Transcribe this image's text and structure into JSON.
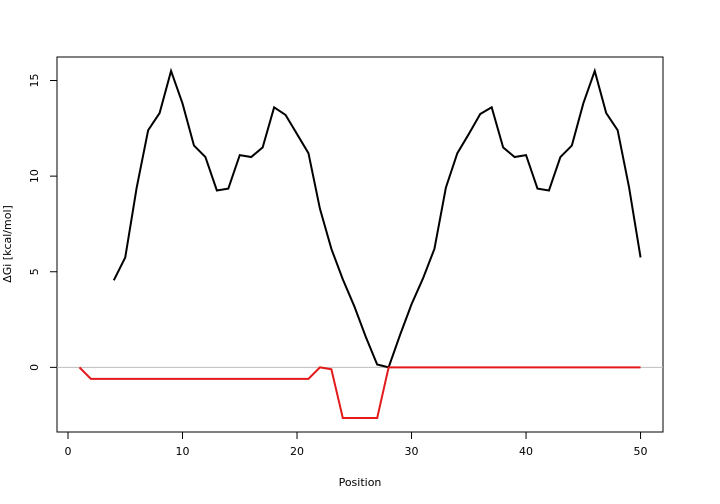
{
  "chart_data": {
    "type": "line",
    "x_label": "Position",
    "y_label": "ΔGi [kcal/mol]",
    "x": [
      1,
      2,
      3,
      4,
      5,
      6,
      7,
      8,
      9,
      10,
      11,
      12,
      13,
      14,
      15,
      16,
      17,
      18,
      19,
      20,
      21,
      22,
      23,
      24,
      25,
      26,
      27,
      28,
      29,
      30,
      31,
      32,
      33,
      34,
      35,
      36,
      37,
      38,
      39,
      40,
      41,
      42,
      43,
      44,
      45,
      46,
      47,
      48,
      49,
      50
    ],
    "series": [
      {
        "color": "#000000",
        "values": [
          null,
          null,
          null,
          4.55,
          5.75,
          9.4,
          12.4,
          13.3,
          15.5,
          13.8,
          11.6,
          11.0,
          9.25,
          9.35,
          11.1,
          11.0,
          11.5,
          13.6,
          13.2,
          12.2,
          11.2,
          8.3,
          6.2,
          4.6,
          3.2,
          1.6,
          0.15,
          0.0,
          1.7,
          3.3,
          4.65,
          6.2,
          9.4,
          11.2,
          12.2,
          13.25,
          13.6,
          11.5,
          11.0,
          11.1,
          9.35,
          9.25,
          11.0,
          11.6,
          13.8,
          15.5,
          13.3,
          12.4,
          9.4,
          5.75
        ]
      },
      {
        "color": "#e31a1c",
        "values": [
          0,
          -0.6,
          -0.6,
          -0.6,
          -0.6,
          -0.6,
          -0.6,
          -0.6,
          -0.6,
          -0.6,
          -0.6,
          -0.6,
          -0.6,
          -0.6,
          -0.6,
          -0.6,
          -0.6,
          -0.6,
          -0.6,
          -0.6,
          -0.6,
          0,
          -0.1,
          -2.65,
          -2.65,
          -2.65,
          -2.65,
          0,
          0,
          0,
          0,
          0,
          0,
          0,
          0,
          0,
          0,
          0,
          0,
          0,
          0,
          0,
          0,
          0,
          0,
          0,
          0,
          0,
          0,
          0
        ]
      }
    ],
    "reference_line": {
      "y": 0,
      "color": "#bebebe"
    },
    "xlim": [
      -0.96,
      51.96
    ],
    "ylim": [
      -3.38,
      16.23
    ],
    "xticks": [
      0,
      10,
      20,
      30,
      40,
      50
    ],
    "yticks": [
      0,
      5,
      10,
      15
    ]
  }
}
